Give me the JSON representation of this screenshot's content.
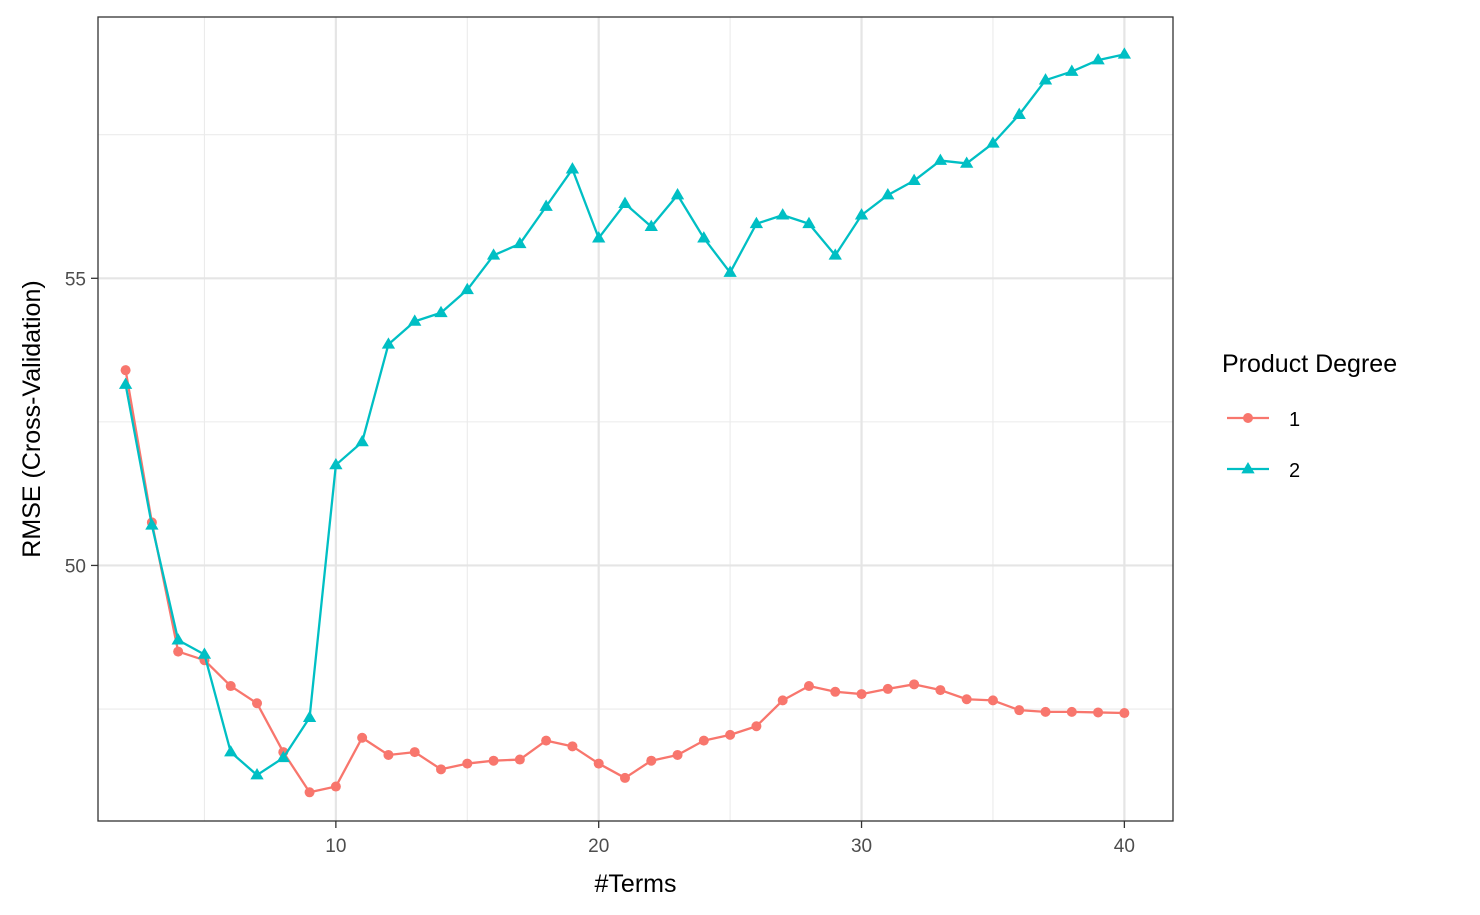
{
  "chart_data": {
    "type": "line",
    "xlabel": "#Terms",
    "ylabel": "RMSE (Cross-Validation)",
    "xlim": [
      0.95,
      41.85
    ],
    "ylim": [
      45.55,
      59.55
    ],
    "xticks": [
      10,
      20,
      30,
      40
    ],
    "yticks": [
      50,
      55
    ],
    "grid": true,
    "legend": {
      "title": "Product Degree",
      "placement": "right"
    },
    "x": [
      2,
      3,
      4,
      5,
      6,
      7,
      8,
      9,
      10,
      11,
      12,
      13,
      14,
      15,
      16,
      17,
      18,
      19,
      20,
      21,
      22,
      23,
      24,
      25,
      26,
      27,
      28,
      29,
      30,
      31,
      32,
      33,
      34,
      35,
      36,
      37,
      38,
      39,
      40
    ],
    "series": [
      {
        "name": "1",
        "color": "#F8766D",
        "marker": "circle",
        "values": [
          53.4,
          50.75,
          48.5,
          48.35,
          47.9,
          47.6,
          46.75,
          46.05,
          46.15,
          47.0,
          46.7,
          46.75,
          46.45,
          46.55,
          46.6,
          46.62,
          46.95,
          46.85,
          46.55,
          46.3,
          46.6,
          46.7,
          46.95,
          47.05,
          47.2,
          47.65,
          47.9,
          47.8,
          47.76,
          47.85,
          47.93,
          47.83,
          47.67,
          47.65,
          47.48,
          47.45,
          47.45,
          47.44,
          47.43
        ]
      },
      {
        "name": "2",
        "color": "#00BFC4",
        "marker": "triangle",
        "values": [
          53.15,
          50.7,
          48.7,
          48.45,
          46.75,
          46.35,
          46.65,
          47.35,
          51.75,
          52.15,
          53.85,
          54.25,
          54.4,
          54.8,
          55.4,
          55.6,
          56.25,
          56.9,
          55.7,
          56.3,
          55.9,
          56.45,
          55.7,
          55.1,
          55.95,
          56.1,
          55.95,
          55.4,
          56.1,
          56.45,
          56.7,
          57.05,
          57.0,
          57.35,
          57.85,
          58.45,
          58.6,
          58.8,
          58.9
        ]
      }
    ]
  }
}
